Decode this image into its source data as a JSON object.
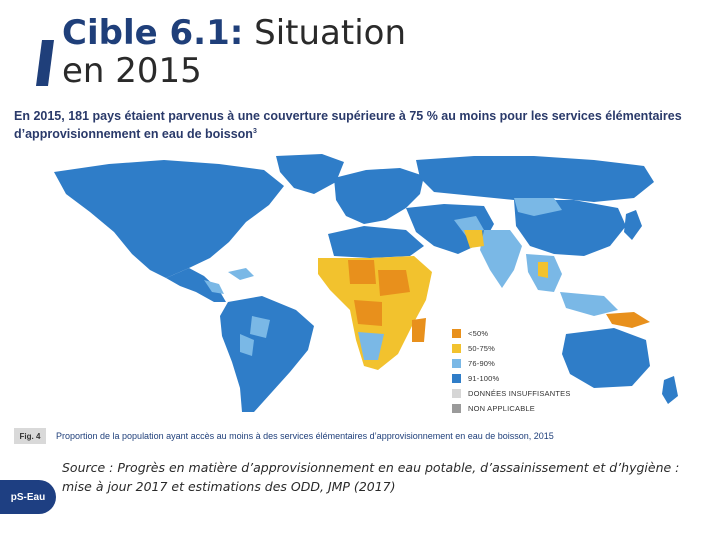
{
  "slide": {
    "title_bold": "Cible 6.1:",
    "title_rest": " Situation en 2015",
    "accent_color": "#1f3f7a"
  },
  "map": {
    "headline": "En 2015, 181 pays étaient parvenus à une couverture supérieure à 75 % au moins pour les services élémentaires d’approvisionnement en eau de boisson",
    "headline_sup": "3",
    "legend": [
      {
        "label": "<50%",
        "color": "#e8901c"
      },
      {
        "label": "50-75%",
        "color": "#f2c22e"
      },
      {
        "label": "76-90%",
        "color": "#7ab8e6"
      },
      {
        "label": "91-100%",
        "color": "#2f7dc8"
      },
      {
        "label": "DONNÉES INSUFFISANTES",
        "color": "#d6d6d6"
      },
      {
        "label": "NON APPLICABLE",
        "color": "#9a9a9a"
      }
    ],
    "fig_label": "Fig. 4",
    "caption": "Proportion de la population ayant accès au moins à des services élémentaires d’approvisionnement en eau de boisson, 2015"
  },
  "source": {
    "text": "Source : Progrès en matière d’approvisionnement en eau potable, d’assainissement et d’hygiène : mise à jour 2017 et estimations des ODD, JMP (2017)"
  },
  "logo": {
    "text": "pS-Eau"
  }
}
